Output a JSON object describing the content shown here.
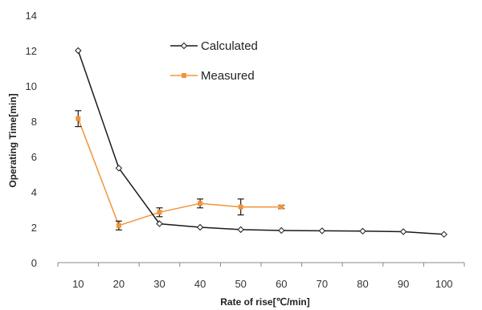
{
  "chart_data": {
    "type": "line",
    "title": "",
    "xlabel": "Rate of rise[℃/min]",
    "ylabel": "Operating Time[min]",
    "ylim": [
      0,
      14
    ],
    "yticks": [
      0,
      2,
      4,
      6,
      8,
      10,
      12,
      14
    ],
    "x": [
      10,
      20,
      30,
      40,
      50,
      60,
      70,
      80,
      90,
      100
    ],
    "grid": false,
    "legend_position": "top-center",
    "series": [
      {
        "name": "Calculated",
        "color": "#1a1a1a",
        "marker": "diamond-open",
        "x": [
          10,
          20,
          30,
          40,
          50,
          60,
          70,
          80,
          90,
          100
        ],
        "values": [
          12.0,
          5.35,
          2.2,
          2.0,
          1.87,
          1.82,
          1.8,
          1.78,
          1.75,
          1.6
        ]
      },
      {
        "name": "Measured",
        "color": "#f0953a",
        "marker": "square",
        "x": [
          10,
          20,
          30,
          40,
          50,
          60
        ],
        "values": [
          8.15,
          2.1,
          2.85,
          3.35,
          3.15,
          3.15
        ],
        "error": [
          0.45,
          0.25,
          0.25,
          0.25,
          0.45,
          0.1
        ]
      }
    ]
  }
}
